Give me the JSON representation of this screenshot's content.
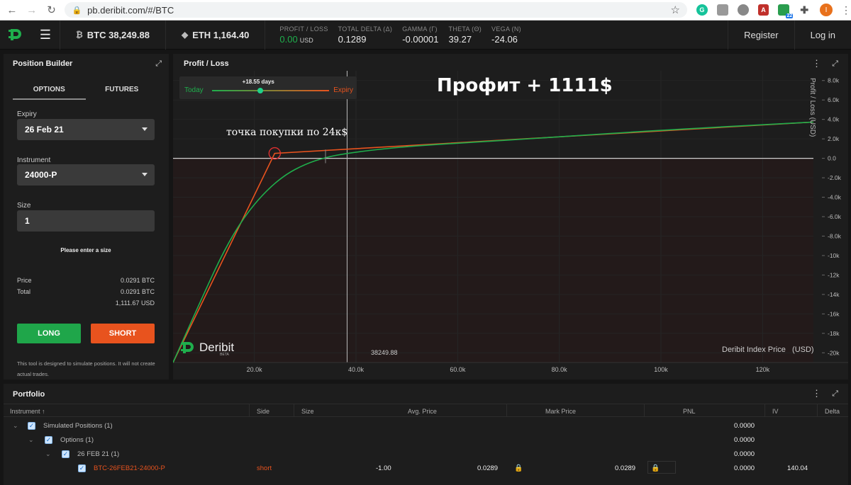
{
  "browser": {
    "url": "pb.deribit.com/#/BTC",
    "badge_count": "22",
    "avatar_letter": "I"
  },
  "header": {
    "btc_symbol": "₿",
    "btc_price": "BTC 38,249.88",
    "eth_symbol": "◆",
    "eth_price": "ETH 1,164.40",
    "greeks": [
      {
        "label": "PROFIT / LOSS",
        "value": "0.00",
        "unit": "USD"
      },
      {
        "label": "TOTAL DELTA (Δ)",
        "value": "0.1289"
      },
      {
        "label": "GAMMA (Γ)",
        "value": "-0.00001"
      },
      {
        "label": "THETA (Θ)",
        "value": "39.27"
      },
      {
        "label": "VEGA (N)",
        "value": "-24.06"
      }
    ],
    "register": "Register",
    "login": "Log in"
  },
  "position_builder": {
    "title": "Position Builder",
    "tabs": [
      "OPTIONS",
      "FUTURES"
    ],
    "expiry_label": "Expiry",
    "expiry_value": "26 Feb 21",
    "instrument_label": "Instrument",
    "instrument_value": "24000-P",
    "size_label": "Size",
    "size_value": "1",
    "hint": "Please enter a size",
    "price_label": "Price",
    "price_value": "0.0291 BTC",
    "total_label": "Total",
    "total_btc": "0.0291 BTC",
    "total_usd": "1,111.67 USD",
    "long": "LONG",
    "short": "SHORT",
    "disclaimer": "This tool is designed to simulate positions. It will not create actual trades."
  },
  "profit_loss": {
    "title": "Profit / Loss",
    "slider_today": "Today",
    "slider_days": "+18.55 days",
    "slider_expiry": "Expiry",
    "slider_fraction": 0.41,
    "annotation_profit": "Профит + 1111$",
    "annotation_buy": "точка покупки по 24к$",
    "crosshair_label": "38249.88",
    "index_label": "Deribit Index Price",
    "index_unit": "(USD)",
    "logo_text": "Deribit",
    "logo_sub": "BETA",
    "colors": {
      "expiry_line": "#e8531e",
      "today_line": "#1fae4c",
      "brand": "#1fae4c"
    }
  },
  "chart_data": {
    "type": "line",
    "xlabel": "Deribit Index Price (USD)",
    "ylabel": "Profit / Loss (USD)",
    "xlim": [
      4000,
      130000
    ],
    "ylim": [
      -21000,
      9000
    ],
    "x_ticks": [
      20000,
      40000,
      60000,
      80000,
      100000,
      120000
    ],
    "x_tick_labels": [
      "20.0k",
      "40.0k",
      "60.0k",
      "80.0k",
      "100k",
      "120k"
    ],
    "y_ticks": [
      8000,
      6000,
      4000,
      2000,
      0,
      -2000,
      -4000,
      -6000,
      -8000,
      -10000,
      -12000,
      -14000,
      -16000,
      -18000,
      -20000
    ],
    "y_tick_labels": [
      "8.0k",
      "6.0k",
      "4.0k",
      "2.0k",
      "0.0",
      "-2.0k",
      "-4.0k",
      "-6.0k",
      "-8.0k",
      "-10k",
      "-12k",
      "-14k",
      "-16k",
      "-18k",
      "-20k"
    ],
    "series": [
      {
        "name": "Expiry",
        "x": [
          4000,
          24000,
          130000
        ],
        "y": [
          -21000,
          510,
          3730
        ]
      },
      {
        "name": "Today",
        "x": [
          4000,
          10000,
          14000,
          18000,
          22000,
          26000,
          30000,
          34000,
          38000,
          44000,
          52000,
          60000,
          80000,
          100000,
          130000
        ],
        "y": [
          -21000,
          -14000,
          -9500,
          -6000,
          -3500,
          -1700,
          -600,
          100,
          500,
          900,
          1300,
          1550,
          2200,
          2900,
          3730
        ]
      }
    ],
    "crosshair_x": 38249.88,
    "marker": {
      "x": 24000,
      "y": 510
    }
  },
  "portfolio": {
    "title": "Portfolio",
    "columns": [
      "Instrument ↑",
      "Side",
      "Size",
      "Avg. Price",
      "Mark Price",
      "PNL",
      "IV",
      "Delta"
    ],
    "rows": [
      {
        "label": "Simulated Positions (1)",
        "pnl": "0.0000"
      },
      {
        "label": "Options (1)",
        "pnl": "0.0000"
      },
      {
        "label": "26 FEB 21 (1)",
        "pnl": "0.0000"
      },
      {
        "label": "BTC-26FEB21-24000-P",
        "side": "short",
        "size": "-1.00",
        "avg": "0.0289",
        "mark": "0.0289",
        "pnl": "0.0000",
        "iv": "140.04"
      }
    ]
  }
}
